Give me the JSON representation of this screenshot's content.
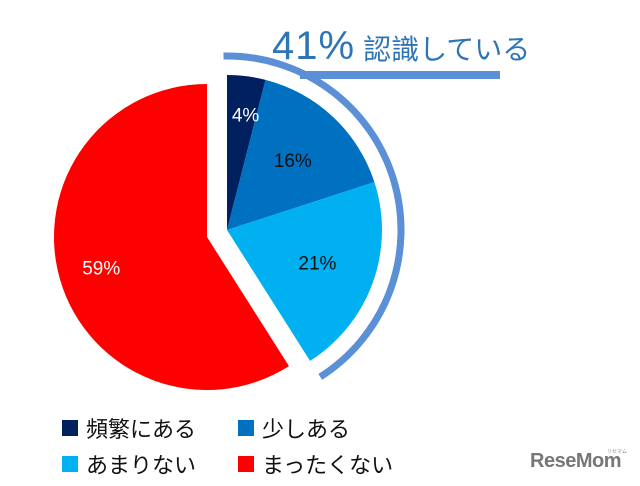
{
  "chart_data": {
    "type": "pie",
    "title": "",
    "categories": [
      "頻繁にある",
      "少しある",
      "あまりない",
      "まったくない"
    ],
    "values": [
      4,
      16,
      21,
      59
    ],
    "labels": [
      "4%",
      "16%",
      "21%",
      "59%"
    ],
    "colors": [
      "#002060",
      "#0070c0",
      "#00b0f0",
      "#ff0000"
    ],
    "annotation": {
      "value": "41%",
      "text": "認識している",
      "covers": [
        "頻繁にある",
        "少しある",
        "あまりない"
      ],
      "color": "#2e75b6",
      "bracket_color": "#5b8fd6"
    },
    "legend_position": "bottom"
  },
  "callout": {
    "pct": "41%",
    "text": "認識している"
  },
  "legend": [
    {
      "label": "頻繁にある",
      "color": "#002060"
    },
    {
      "label": "少しある",
      "color": "#0070c0"
    },
    {
      "label": "あまりない",
      "color": "#00b0f0"
    },
    {
      "label": "まったくない",
      "color": "#ff0000"
    }
  ],
  "watermark": {
    "text": "ReseMom",
    "sub": "リセマム"
  }
}
